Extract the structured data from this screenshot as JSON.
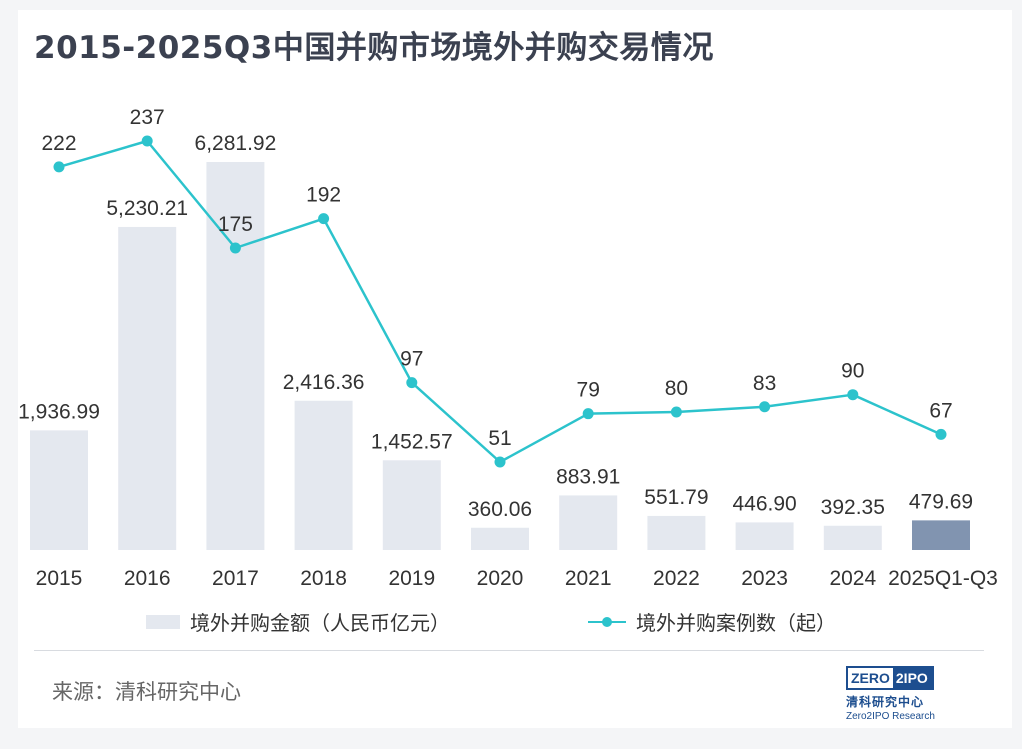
{
  "title": "2015-2025Q3中国并购市场境外并购交易情况",
  "chart_data": {
    "type": "bar+line",
    "categories": [
      "2015",
      "2016",
      "2017",
      "2018",
      "2019",
      "2020",
      "2021",
      "2022",
      "2023",
      "2024",
      "2025Q1-Q3"
    ],
    "series": [
      {
        "name": "境外并购金额（人民币亿元）",
        "type": "bar",
        "values": [
          1936.99,
          5230.21,
          6281.92,
          2416.36,
          1452.57,
          360.06,
          883.91,
          551.79,
          446.9,
          392.35,
          479.69
        ],
        "labels": [
          "1,936.99",
          "5,230.21",
          "6,281.92",
          "2,416.36",
          "1,452.57",
          "360.06",
          "883.91",
          "551.79",
          "446.90",
          "392.35",
          "479.69"
        ],
        "color": "#e4e8ef",
        "highlight_color": "#8194b0",
        "highlight_index": 10
      },
      {
        "name": "境外并购案例数（起）",
        "type": "line",
        "values": [
          222,
          237,
          175,
          192,
          97,
          51,
          79,
          80,
          83,
          90,
          67
        ],
        "color": "#2cc3cc"
      }
    ],
    "ylim_bar": [
      0,
      6281.92
    ],
    "ylim_line": [
      51,
      237
    ]
  },
  "legend": {
    "bar_label": "境外并购金额（人民币亿元）",
    "line_label": "境外并购案例数（起）"
  },
  "source": "来源：清科研究中心",
  "logo": {
    "left_text": "ZERO",
    "right_text": "2IPO",
    "cn": "清科研究中心",
    "en": "Zero2IPO Research"
  }
}
